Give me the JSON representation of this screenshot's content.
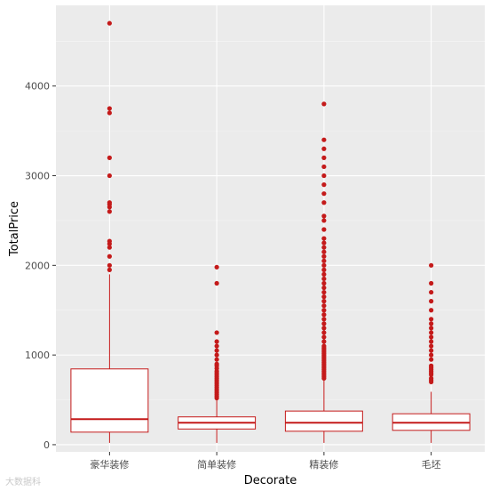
{
  "chart_data": {
    "type": "boxplot",
    "xlabel": "Decorate",
    "ylabel": "TotalPrice",
    "ylim": [
      -80,
      4900
    ],
    "yticks": [
      0,
      1000,
      2000,
      3000,
      4000
    ],
    "grid": true,
    "colors": {
      "panel": "#ebebeb",
      "grid_major": "#ffffff",
      "box": "#c41a1a",
      "fill": "#ffffff"
    },
    "categories": [
      "豪华装修",
      "简单装修",
      "精装修",
      "毛坯"
    ],
    "boxes": [
      {
        "name": "豪华装修",
        "min": 20,
        "q1": 140,
        "median": 285,
        "q3": 845,
        "max": 1900,
        "outliers": [
          1950,
          2000,
          2100,
          2200,
          2240,
          2270,
          2600,
          2650,
          2680,
          2700,
          3000,
          3200,
          3700,
          3750,
          4700
        ]
      },
      {
        "name": "简单装修",
        "min": 20,
        "q1": 175,
        "median": 245,
        "q3": 310,
        "max": 500,
        "outliers": [
          520,
          540,
          560,
          580,
          600,
          620,
          640,
          660,
          680,
          700,
          720,
          740,
          760,
          780,
          800,
          820,
          850,
          880,
          900,
          950,
          1000,
          1050,
          1100,
          1150,
          1250,
          1800,
          1980
        ]
      },
      {
        "name": "精装修",
        "min": 20,
        "q1": 150,
        "median": 245,
        "q3": 375,
        "max": 720,
        "outliers": [
          740,
          760,
          780,
          800,
          820,
          840,
          860,
          880,
          900,
          920,
          940,
          960,
          980,
          1000,
          1020,
          1040,
          1060,
          1080,
          1100,
          1150,
          1200,
          1250,
          1300,
          1350,
          1400,
          1450,
          1500,
          1550,
          1600,
          1650,
          1700,
          1750,
          1800,
          1850,
          1900,
          1950,
          2000,
          2050,
          2100,
          2150,
          2200,
          2250,
          2300,
          2400,
          2500,
          2550,
          2700,
          2800,
          2900,
          3000,
          3100,
          3200,
          3300,
          3400,
          3800
        ]
      },
      {
        "name": "毛坯",
        "min": 20,
        "q1": 160,
        "median": 245,
        "q3": 345,
        "max": 590,
        "outliers": [
          700,
          720,
          740,
          780,
          800,
          820,
          840,
          860,
          880,
          950,
          1000,
          1050,
          1100,
          1150,
          1200,
          1250,
          1300,
          1350,
          1400,
          1500,
          1600,
          1700,
          1800,
          2000
        ]
      }
    ]
  },
  "watermark": "大数据科"
}
